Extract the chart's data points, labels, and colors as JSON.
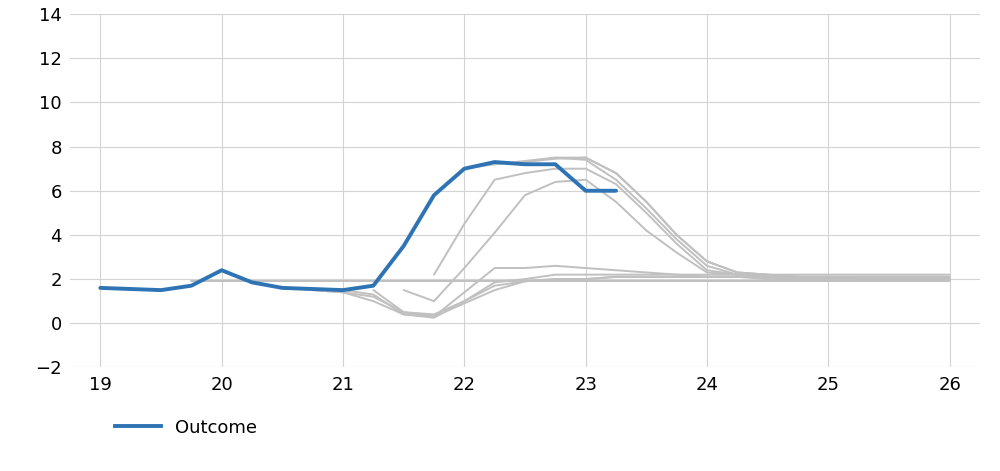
{
  "outcome_x": [
    19.0,
    19.25,
    19.5,
    19.75,
    20.0,
    20.25,
    20.5,
    20.75,
    21.0,
    21.25,
    21.5,
    21.75,
    22.0,
    22.25,
    22.5,
    22.75,
    23.0,
    23.25
  ],
  "outcome_y": [
    1.6,
    1.55,
    1.5,
    1.7,
    2.4,
    1.85,
    1.6,
    1.55,
    1.5,
    1.7,
    3.5,
    5.8,
    7.0,
    7.3,
    7.2,
    7.2,
    6.0,
    6.0
  ],
  "forecasts": [
    {
      "x": [
        19.75,
        20.0,
        20.25,
        20.5,
        20.75,
        21.0,
        21.25,
        21.5,
        21.75,
        22.0,
        22.25,
        22.5,
        22.75,
        23.0,
        23.25,
        23.5,
        23.75,
        24.0,
        24.25,
        24.5,
        24.75,
        25.0,
        25.25,
        25.5,
        25.75,
        26.0
      ],
      "y": [
        1.9,
        1.9,
        1.9,
        1.9,
        1.9,
        1.9,
        1.9,
        1.9,
        1.9,
        1.9,
        1.9,
        1.9,
        1.9,
        1.9,
        1.9,
        1.9,
        1.9,
        1.9,
        1.9,
        1.9,
        1.9,
        1.9,
        1.9,
        1.9,
        1.9,
        1.9
      ]
    },
    {
      "x": [
        20.5,
        20.75,
        21.0,
        21.25,
        21.5,
        21.75,
        22.0,
        22.25,
        22.5,
        22.75,
        23.0,
        23.25,
        23.5,
        23.75,
        24.0,
        24.25,
        24.5,
        24.75,
        25.0,
        25.25,
        25.5,
        25.75,
        26.0
      ],
      "y": [
        1.6,
        1.5,
        1.4,
        1.2,
        0.5,
        0.4,
        1.0,
        1.7,
        1.9,
        2.0,
        2.0,
        2.1,
        2.1,
        2.1,
        2.1,
        2.1,
        2.1,
        2.1,
        2.1,
        2.1,
        2.1,
        2.1,
        2.1
      ]
    },
    {
      "x": [
        20.75,
        21.0,
        21.25,
        21.5,
        21.75,
        22.0,
        22.25,
        22.5,
        22.75,
        23.0,
        23.25,
        23.5,
        23.75,
        24.0,
        24.25,
        24.5,
        24.75,
        25.0,
        25.25,
        25.5,
        25.75,
        26.0
      ],
      "y": [
        1.5,
        1.4,
        1.0,
        0.4,
        0.3,
        0.9,
        1.5,
        1.9,
        2.0,
        2.0,
        2.1,
        2.1,
        2.1,
        2.1,
        2.1,
        2.1,
        2.1,
        2.1,
        2.1,
        2.1,
        2.1,
        2.1
      ]
    },
    {
      "x": [
        21.0,
        21.25,
        21.5,
        21.75,
        22.0,
        22.25,
        22.5,
        22.75,
        23.0,
        23.25,
        23.5,
        23.75,
        24.0,
        24.25,
        24.5,
        24.75,
        25.0,
        25.25,
        25.5,
        25.75,
        26.0
      ],
      "y": [
        1.5,
        1.3,
        0.4,
        0.25,
        1.0,
        1.85,
        2.0,
        2.2,
        2.2,
        2.2,
        2.2,
        2.2,
        2.2,
        2.2,
        2.2,
        2.2,
        2.2,
        2.2,
        2.2,
        2.2,
        2.2
      ]
    },
    {
      "x": [
        21.25,
        21.5,
        21.75,
        22.0,
        22.25,
        22.5,
        22.75,
        23.0,
        23.25,
        23.5,
        23.75,
        24.0,
        24.25,
        24.5,
        24.75,
        25.0,
        25.25,
        25.5,
        25.75,
        26.0
      ],
      "y": [
        1.5,
        0.5,
        0.3,
        1.4,
        2.5,
        2.5,
        2.6,
        2.5,
        2.4,
        2.3,
        2.2,
        2.1,
        2.1,
        2.0,
        2.0,
        2.0,
        2.0,
        2.0,
        2.0,
        2.0
      ]
    },
    {
      "x": [
        21.5,
        21.75,
        22.0,
        22.25,
        22.5,
        22.75,
        23.0,
        23.25,
        23.5,
        23.75,
        24.0,
        24.25,
        24.5,
        24.75,
        25.0,
        25.25,
        25.5,
        25.75,
        26.0
      ],
      "y": [
        1.5,
        1.0,
        2.5,
        4.1,
        5.8,
        6.4,
        6.5,
        5.5,
        4.2,
        3.2,
        2.3,
        2.2,
        2.1,
        2.1,
        2.1,
        2.0,
        2.0,
        2.0,
        2.0
      ]
    },
    {
      "x": [
        21.75,
        22.0,
        22.25,
        22.5,
        22.75,
        23.0,
        23.25,
        23.5,
        23.75,
        24.0,
        24.25,
        24.5,
        24.75,
        25.0,
        25.25,
        25.5,
        25.75,
        26.0
      ],
      "y": [
        2.2,
        4.5,
        6.5,
        6.8,
        7.0,
        7.0,
        6.3,
        5.0,
        3.6,
        2.4,
        2.2,
        2.1,
        2.1,
        2.0,
        2.0,
        2.0,
        2.0,
        2.0
      ]
    },
    {
      "x": [
        22.0,
        22.25,
        22.5,
        22.75,
        23.0,
        23.25,
        23.5,
        23.75,
        24.0,
        24.25,
        24.5,
        24.75,
        25.0,
        25.25,
        25.5,
        25.75,
        26.0
      ],
      "y": [
        7.0,
        7.2,
        7.3,
        7.5,
        7.4,
        6.5,
        5.2,
        3.8,
        2.6,
        2.2,
        2.1,
        2.0,
        2.0,
        2.0,
        2.0,
        2.0,
        2.0
      ]
    },
    {
      "x": [
        22.25,
        22.5,
        22.75,
        23.0,
        23.25,
        23.5,
        23.75,
        24.0,
        24.25,
        24.5,
        24.75,
        25.0,
        25.25,
        25.5,
        25.75,
        26.0
      ],
      "y": [
        7.2,
        7.35,
        7.5,
        7.5,
        6.8,
        5.5,
        4.0,
        2.8,
        2.3,
        2.2,
        2.1,
        2.0,
        2.0,
        2.0,
        2.0,
        2.0
      ]
    },
    {
      "x": [
        22.5,
        22.75,
        23.0,
        23.25,
        23.5,
        23.75,
        24.0,
        24.25,
        24.5,
        24.75,
        25.0,
        25.25,
        25.5,
        25.75,
        26.0
      ],
      "y": [
        7.3,
        7.45,
        7.5,
        6.8,
        5.5,
        4.0,
        2.8,
        2.3,
        2.2,
        2.1,
        2.0,
        2.0,
        2.0,
        2.0,
        2.0
      ]
    }
  ],
  "outcome_color": "#2E74B5",
  "forecast_color": "#C0C0C0",
  "outcome_linewidth": 2.8,
  "forecast_linewidth": 1.4,
  "xlim": [
    18.75,
    26.25
  ],
  "ylim": [
    -2,
    14
  ],
  "xticks": [
    19,
    20,
    21,
    22,
    23,
    24,
    25,
    26
  ],
  "yticks": [
    -2,
    0,
    2,
    4,
    6,
    8,
    10,
    12,
    14
  ],
  "grid_color": "#D3D3D3",
  "background_color": "#FFFFFF",
  "legend_label": "Outcome",
  "legend_fontsize": 13,
  "tick_fontsize": 13
}
